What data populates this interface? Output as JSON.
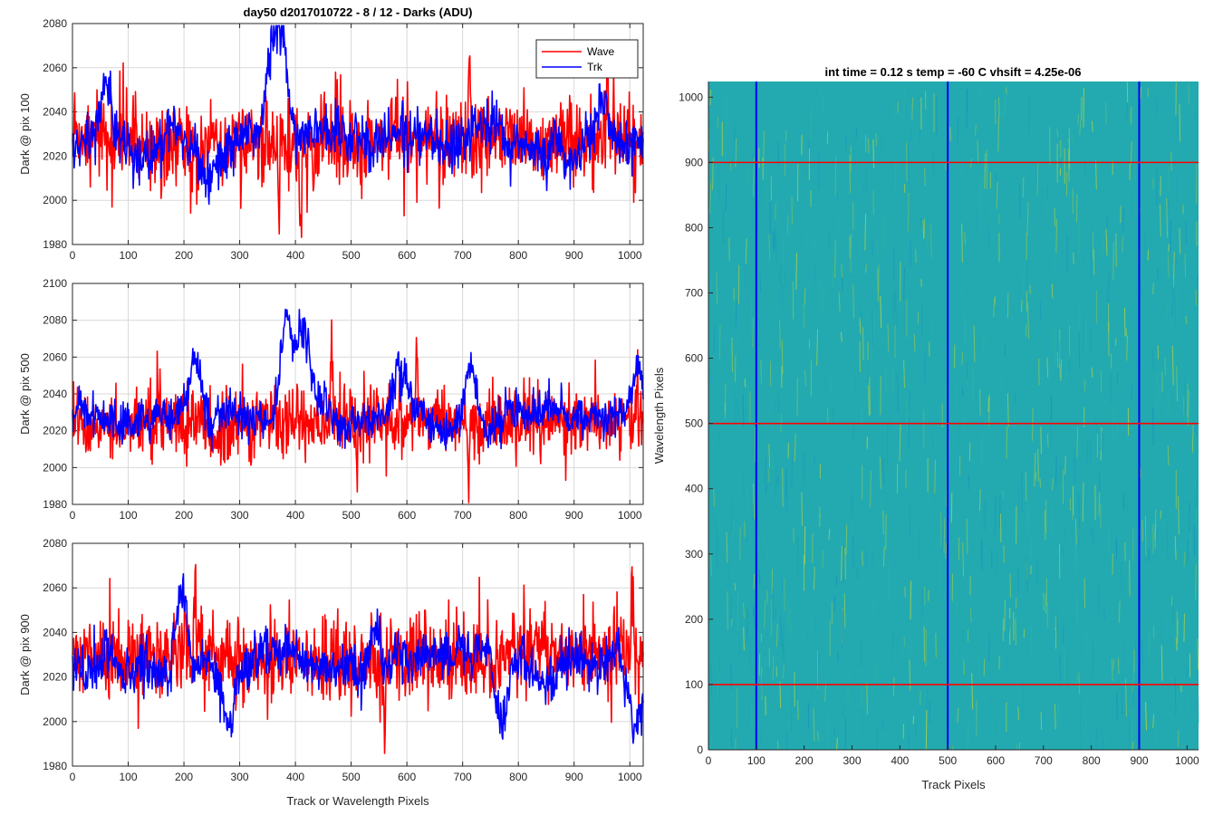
{
  "figure": {
    "main_title": "day50 d2017010722 - 8 / 12 - Darks (ADU)",
    "colors": {
      "wave": "#ff0000",
      "trk": "#0000ff",
      "grid": "#d9d9d9",
      "axis": "#262626",
      "heat_base": "#22aab0",
      "heat_stripe": "#b8d23a"
    }
  },
  "chart_data": [
    {
      "type": "line",
      "title": "day50 d2017010722 - 8 / 12 - Darks (ADU)",
      "ylabel": "Dark @ pix 100",
      "xlabel": "",
      "xlim": [
        0,
        1024
      ],
      "ylim": [
        1980,
        2080
      ],
      "xticks": [
        0,
        100,
        200,
        300,
        400,
        500,
        600,
        700,
        800,
        900,
        1000
      ],
      "yticks": [
        1980,
        2000,
        2020,
        2040,
        2060,
        2080
      ],
      "grid": true,
      "legend": {
        "placement": "top-right",
        "entries": [
          "Wave",
          "Trk"
        ]
      },
      "series": [
        {
          "name": "Wave",
          "color": "#ff0000",
          "baseline": 2027,
          "noise": 9,
          "features": [
            [
              712,
              2078
            ],
            [
              432,
              1995
            ],
            [
              408,
              1994
            ],
            [
              370,
              1999
            ],
            [
              960,
              2064
            ]
          ]
        },
        {
          "name": "Trk",
          "color": "#0000ff",
          "baseline": 2027,
          "noise": 6,
          "features": [
            [
              60,
              2055
            ],
            [
              355,
              2064
            ],
            [
              375,
              2062
            ],
            [
              950,
              2046
            ],
            [
              240,
              2012
            ]
          ]
        }
      ]
    },
    {
      "type": "line",
      "title": "",
      "ylabel": "Dark @ pix 500",
      "xlabel": "",
      "xlim": [
        0,
        1024
      ],
      "ylim": [
        1980,
        2100
      ],
      "xticks": [
        0,
        100,
        200,
        300,
        400,
        500,
        600,
        700,
        800,
        900,
        1000
      ],
      "yticks": [
        1980,
        2000,
        2020,
        2040,
        2060,
        2080,
        2100
      ],
      "grid": true,
      "series": [
        {
          "name": "Wave",
          "color": "#ff0000",
          "baseline": 2024,
          "noise": 9,
          "features": [
            [
              618,
              2066
            ],
            [
              465,
              2068
            ],
            [
              510,
              1994
            ],
            [
              710,
              1999
            ]
          ]
        },
        {
          "name": "Trk",
          "color": "#0000ff",
          "baseline": 2027,
          "noise": 6,
          "features": [
            [
              220,
              2060
            ],
            [
              385,
              2080
            ],
            [
              415,
              2068
            ],
            [
              585,
              2050
            ],
            [
              715,
              2058
            ],
            [
              1015,
              2056
            ]
          ]
        }
      ]
    },
    {
      "type": "line",
      "title": "",
      "ylabel": "Dark @ pix 900",
      "xlabel": "Track or Wavelength Pixels",
      "xlim": [
        0,
        1024
      ],
      "ylim": [
        1980,
        2080
      ],
      "xticks": [
        0,
        100,
        200,
        300,
        400,
        500,
        600,
        700,
        800,
        900,
        1000
      ],
      "yticks": [
        1980,
        2000,
        2020,
        2040,
        2060,
        2080
      ],
      "grid": true,
      "series": [
        {
          "name": "Wave",
          "color": "#ff0000",
          "baseline": 2029,
          "noise": 9,
          "features": [
            [
              1005,
              2070
            ],
            [
              220,
              2068
            ],
            [
              500,
              1999
            ],
            [
              560,
              1997
            ]
          ]
        },
        {
          "name": "Trk",
          "color": "#0000ff",
          "baseline": 2026,
          "noise": 6,
          "features": [
            [
              195,
              2060
            ],
            [
              540,
              2050
            ],
            [
              280,
              2000
            ],
            [
              770,
              2002
            ],
            [
              1010,
              2002
            ]
          ]
        }
      ]
    },
    {
      "type": "heatmap",
      "title": "int time = 0.12 s    temp = -60 C    vhsift = 4.25e-06",
      "xlabel": "Track Pixels",
      "ylabel": "Wavelength Pixels",
      "xlim": [
        0,
        1024
      ],
      "ylim": [
        0,
        1024
      ],
      "xticks": [
        0,
        100,
        200,
        300,
        400,
        500,
        600,
        700,
        800,
        900,
        1000
      ],
      "yticks": [
        0,
        100,
        200,
        300,
        400,
        500,
        600,
        700,
        800,
        900,
        1000
      ],
      "vertical_markers": {
        "color": "#0000ff",
        "x": [
          100,
          500,
          900
        ]
      },
      "horizontal_markers": {
        "color": "#ff0000",
        "y": [
          100,
          500,
          900
        ]
      }
    }
  ]
}
